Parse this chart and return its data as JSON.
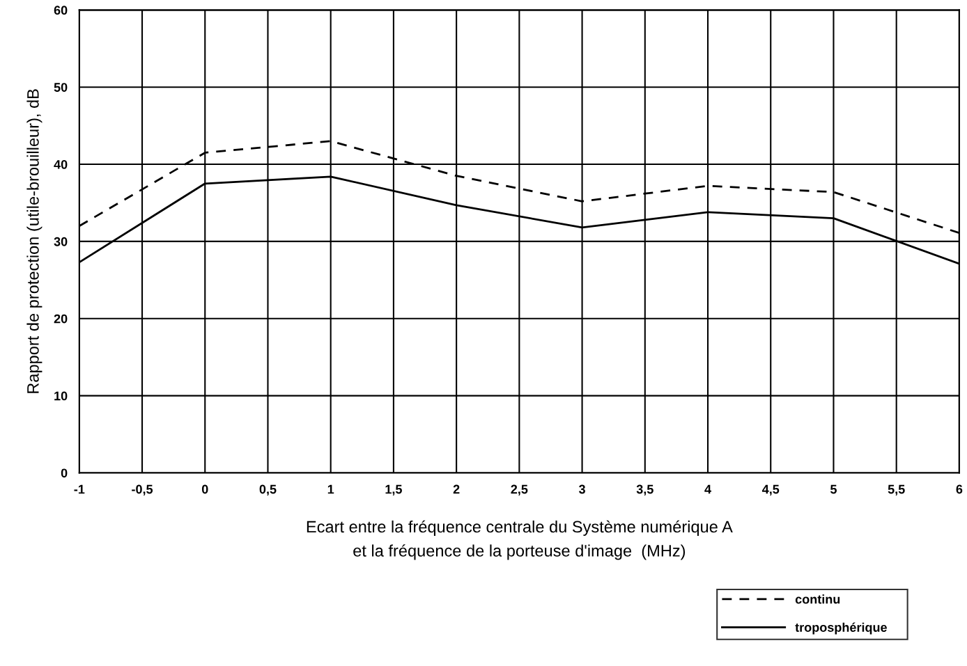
{
  "chart_data": {
    "type": "line",
    "xlabel": "Ecart entre la fréquence centrale du Système numérique A\net la fréquence de la porteuse d'image  (MHz)",
    "ylabel": "Rapport de protection (utile-brouilleur), dB",
    "x": [
      -1,
      0,
      1,
      2,
      3,
      4,
      5,
      6
    ],
    "series": [
      {
        "name": "continu",
        "color": "#000000",
        "line_style": "dashed",
        "values": [
          32,
          41.5,
          43,
          38.5,
          35.2,
          37.2,
          36.4,
          31.1
        ]
      },
      {
        "name": "troposphérique",
        "color": "#000000",
        "line_style": "solid",
        "values": [
          27.3,
          37.5,
          38.4,
          34.7,
          31.8,
          33.8,
          33,
          27.1
        ]
      }
    ],
    "xlim": [
      -1,
      6
    ],
    "ylim": [
      0,
      60
    ],
    "xticks": [
      -1,
      {
        "value": -0.5,
        "label": "-0,5"
      },
      0,
      {
        "value": 0.5,
        "label": "0,5"
      },
      1,
      {
        "value": 1.5,
        "label": "1,5"
      },
      2,
      {
        "value": 2.5,
        "label": "2,5"
      },
      3,
      {
        "value": 3.5,
        "label": "3,5"
      },
      4,
      {
        "value": 4.5,
        "label": "4,5"
      },
      5,
      {
        "value": 5.5,
        "label": "5,5"
      },
      6
    ],
    "yticks": [
      0,
      10,
      20,
      30,
      40,
      50,
      60
    ],
    "grid": true,
    "legend": "bottom right",
    "marker": "none"
  }
}
